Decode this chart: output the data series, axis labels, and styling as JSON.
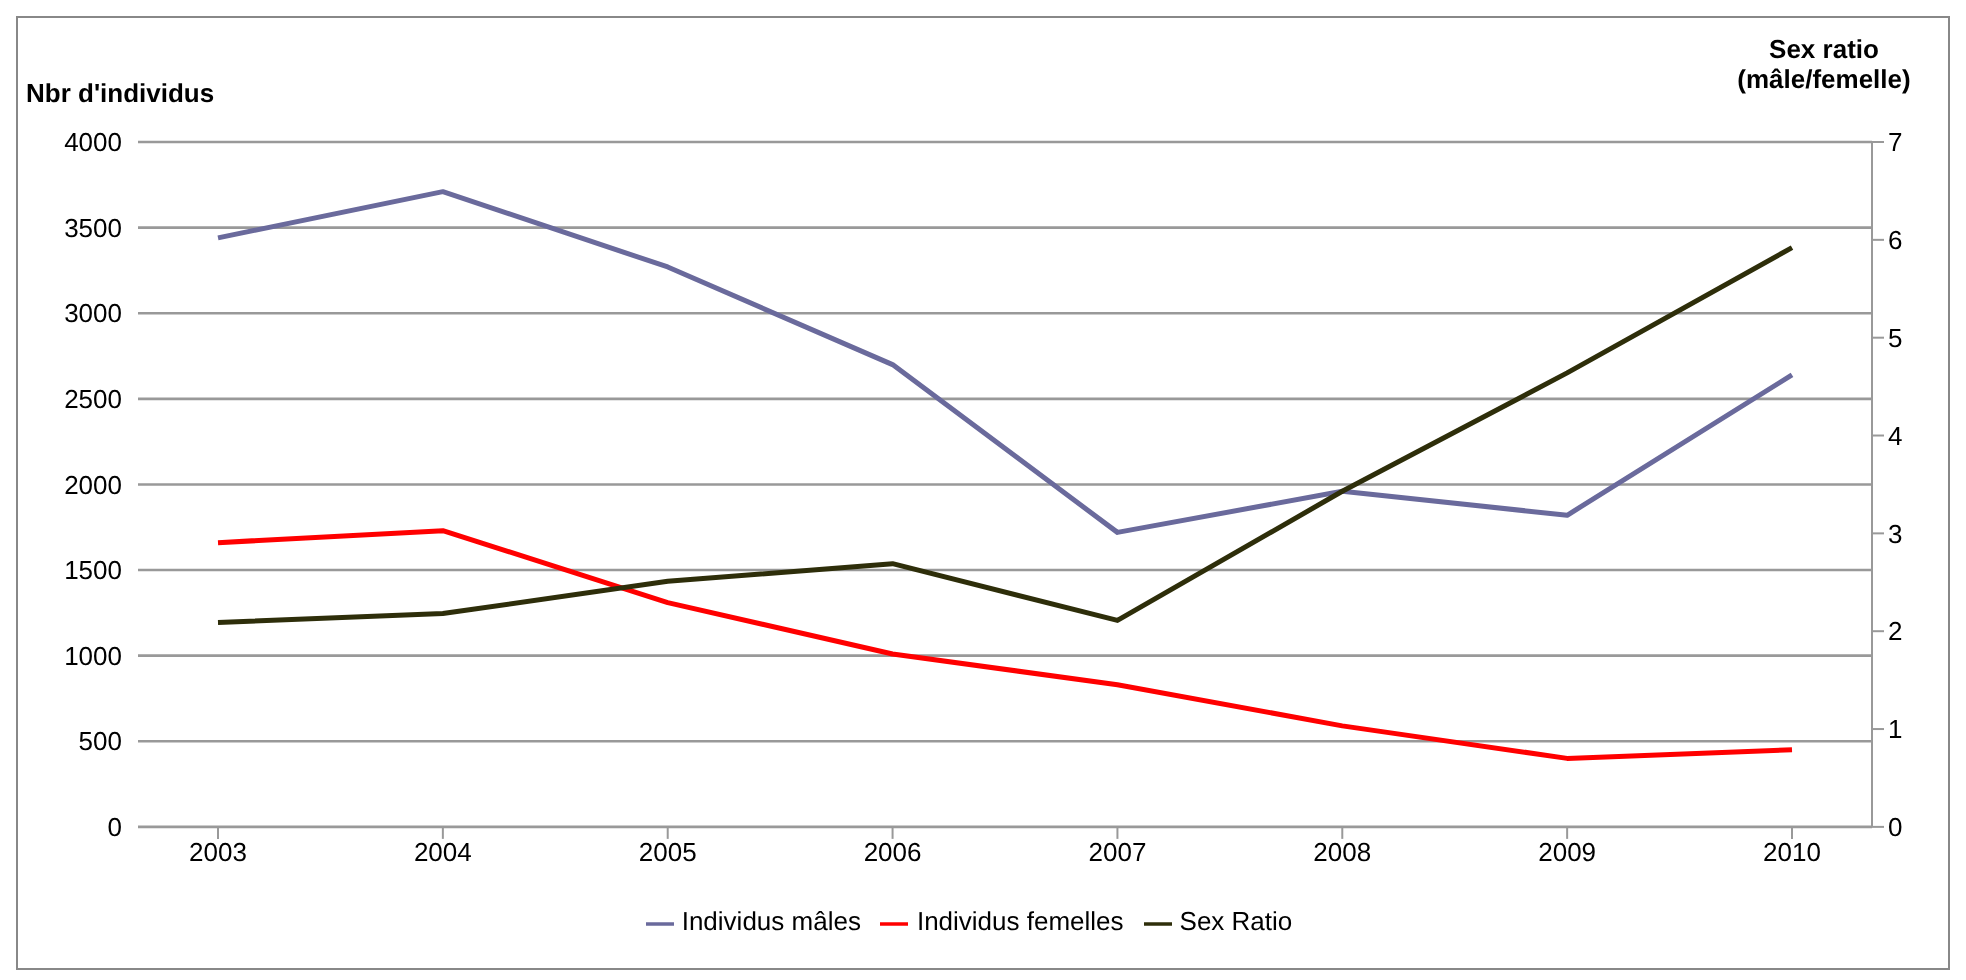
{
  "chart_data": {
    "type": "line",
    "ylabel": "Nbr d'individus",
    "y2label": "Sex ratio (mâle/femelle)",
    "categories": [
      "2003",
      "2004",
      "2005",
      "2006",
      "2007",
      "2008",
      "2009",
      "2010"
    ],
    "series": [
      {
        "name": "Individus mâles",
        "color": "#6a6a9c",
        "values": [
          3440,
          3710,
          3270,
          2700,
          1720,
          1960,
          1820,
          2640
        ]
      },
      {
        "name": "Individus femelles",
        "color": "#ff0000",
        "values": [
          1660,
          1730,
          1310,
          1010,
          830,
          590,
          400,
          450
        ]
      },
      {
        "name": "Sex Ratio",
        "color": "#2e2e0a",
        "axis": "y2",
        "values": [
          2.09,
          2.18,
          2.51,
          2.69,
          2.11,
          3.43,
          4.64,
          5.92
        ]
      }
    ],
    "ylim": [
      0,
      4000
    ],
    "yticks": [
      0,
      500,
      1000,
      1500,
      2000,
      2500,
      3000,
      3500,
      4000
    ],
    "y2lim": [
      0,
      7
    ],
    "y2ticks": [
      0,
      1,
      2,
      3,
      4,
      5,
      6,
      7
    ],
    "grid": "y",
    "legend": "bottom",
    "marker": "none",
    "line_style": "solid"
  }
}
